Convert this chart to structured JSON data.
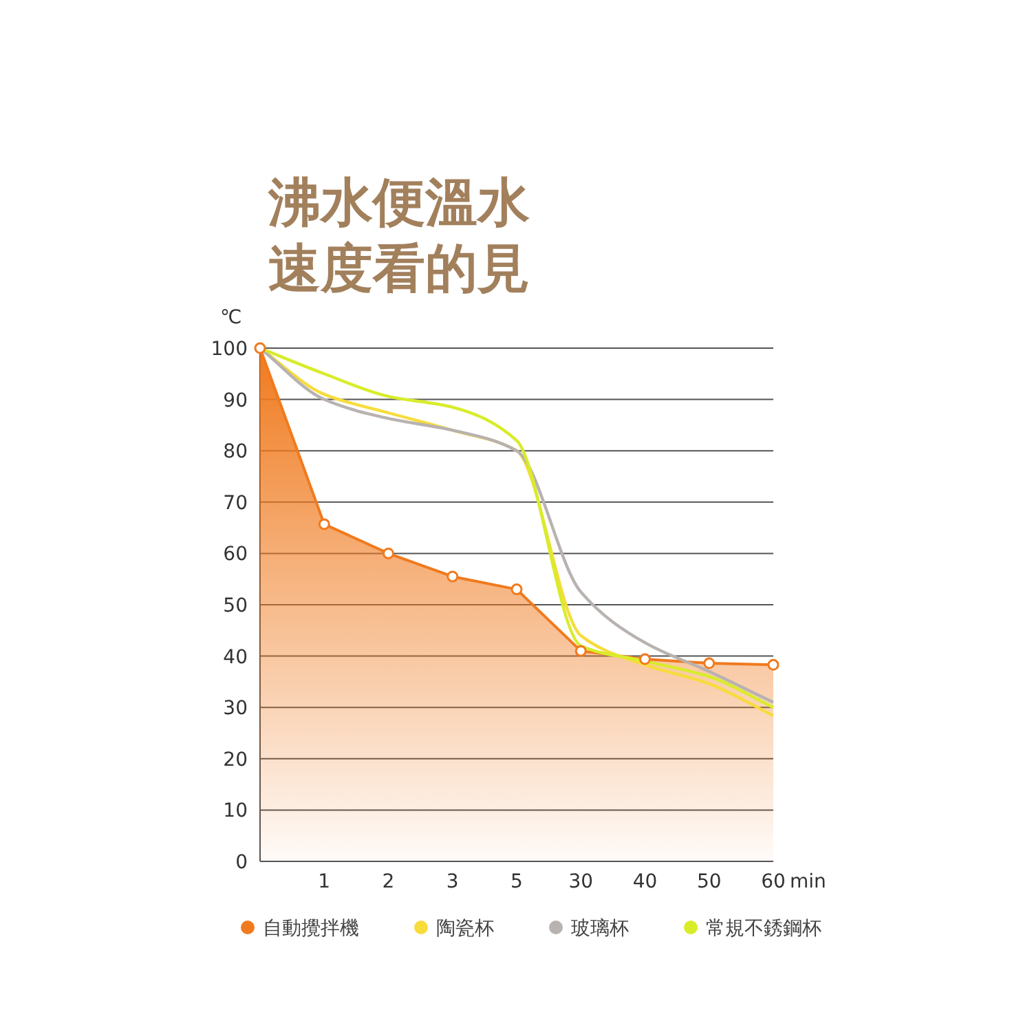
{
  "chart_data": {
    "type": "line",
    "title": "沸水便溫水速度看的見",
    "ylabel": "℃",
    "xlabel": "min",
    "categories": [
      null,
      "1",
      "2",
      "3",
      "5",
      "30",
      "40",
      "50",
      "60"
    ],
    "ylim": [
      0,
      100
    ],
    "yticks": [
      0,
      10,
      20,
      30,
      40,
      50,
      60,
      70,
      80,
      90,
      100
    ],
    "grid": "y",
    "legend": "bottom",
    "series": [
      {
        "name": "自動攪拌機",
        "type": "area",
        "marker": "circle",
        "color": "#f07a1e",
        "values": [
          100,
          65.7,
          60,
          55.5,
          53,
          41,
          39.4,
          38.6,
          38.3
        ]
      },
      {
        "name": "陶瓷杯",
        "marker": "none",
        "color": "#f7dc3c",
        "values": [
          100,
          91,
          87.4,
          84,
          80,
          44,
          38.3,
          34.6,
          28.4
        ]
      },
      {
        "name": "玻璃杯",
        "marker": "none",
        "color": "#b8b2b0",
        "values": [
          100,
          90,
          86.3,
          84,
          80,
          52.5,
          42.6,
          37,
          31
        ]
      },
      {
        "name": "常規不銹鋼杯",
        "marker": "none",
        "color": "#d8ec2a",
        "values": [
          100,
          95,
          90.6,
          88.5,
          82,
          42,
          39,
          36,
          30
        ]
      }
    ]
  }
}
